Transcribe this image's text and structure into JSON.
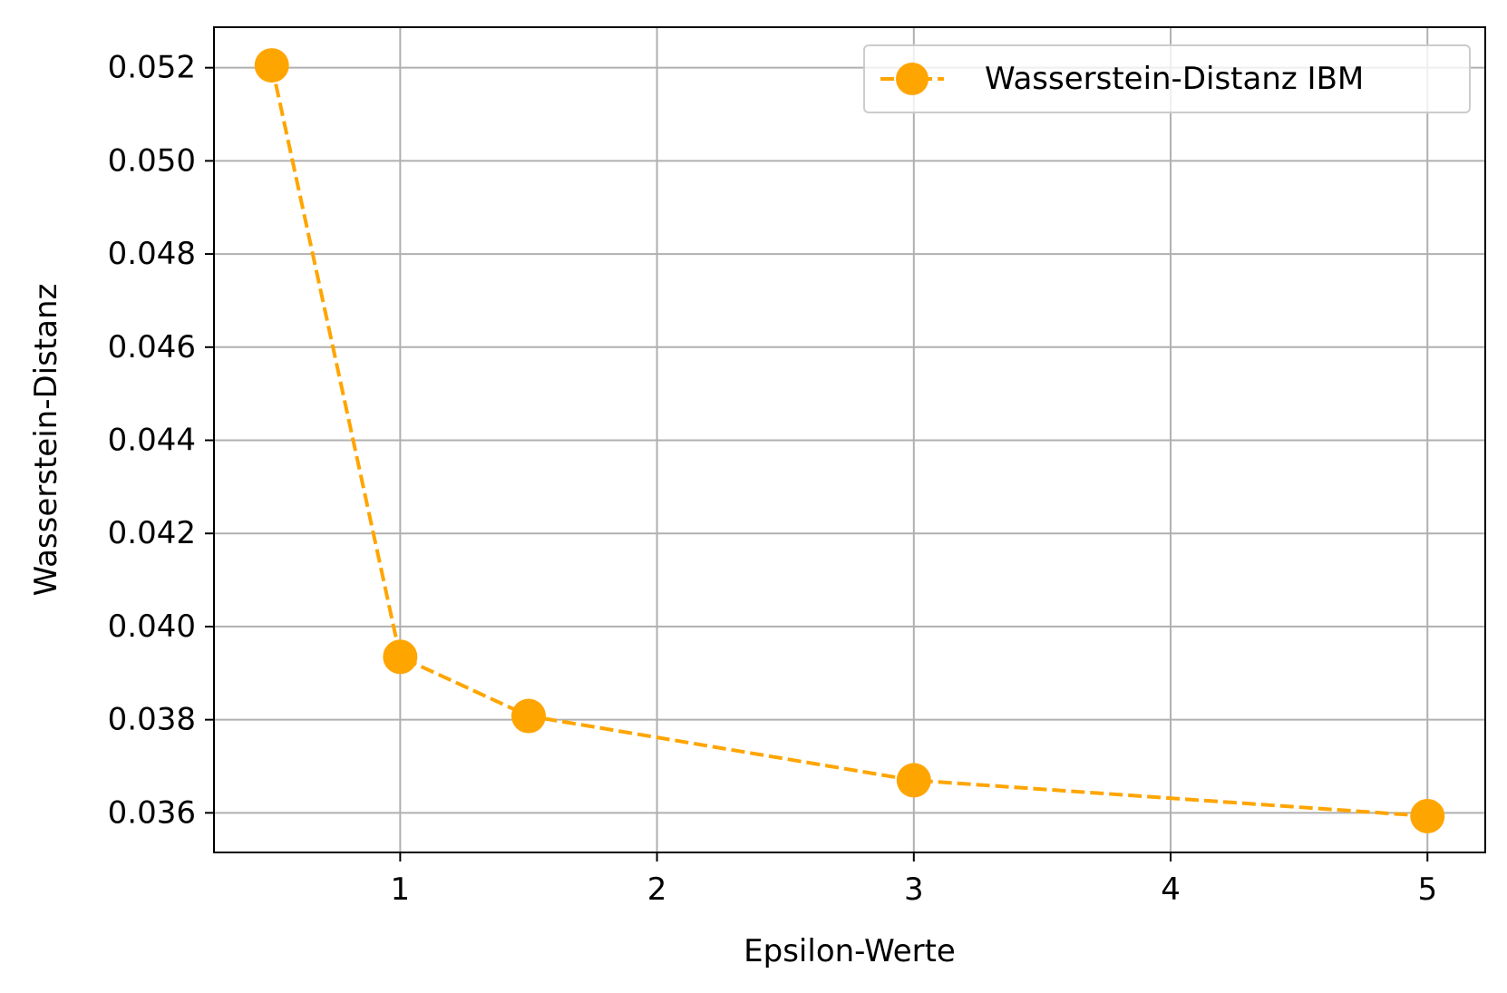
{
  "chart_data": {
    "type": "line",
    "title": "",
    "xlabel": "Epsilon-Werte",
    "ylabel": "Wasserstein-Distanz",
    "xlim": [
      0.275,
      5.225
    ],
    "ylim": [
      0.03515,
      0.05287
    ],
    "x_ticks": [
      1,
      2,
      3,
      4,
      5
    ],
    "x_tick_labels": [
      "1",
      "2",
      "3",
      "4",
      "5"
    ],
    "y_ticks": [
      0.036,
      0.038,
      0.04,
      0.042,
      0.044,
      0.046,
      0.048,
      0.05,
      0.052
    ],
    "y_tick_labels": [
      "0.036",
      "0.038",
      "0.040",
      "0.042",
      "0.044",
      "0.046",
      "0.048",
      "0.050",
      "0.052"
    ],
    "grid": true,
    "legend_position": "top-right",
    "series": [
      {
        "name": "Wasserstein-Distanz IBM",
        "color": "#ffa500",
        "line_style": "dashed",
        "marker": "circle",
        "x": [
          0.5,
          1,
          1.5,
          3,
          5
        ],
        "y": [
          0.05205,
          0.03935,
          0.03808,
          0.0367,
          0.03593
        ]
      }
    ]
  }
}
